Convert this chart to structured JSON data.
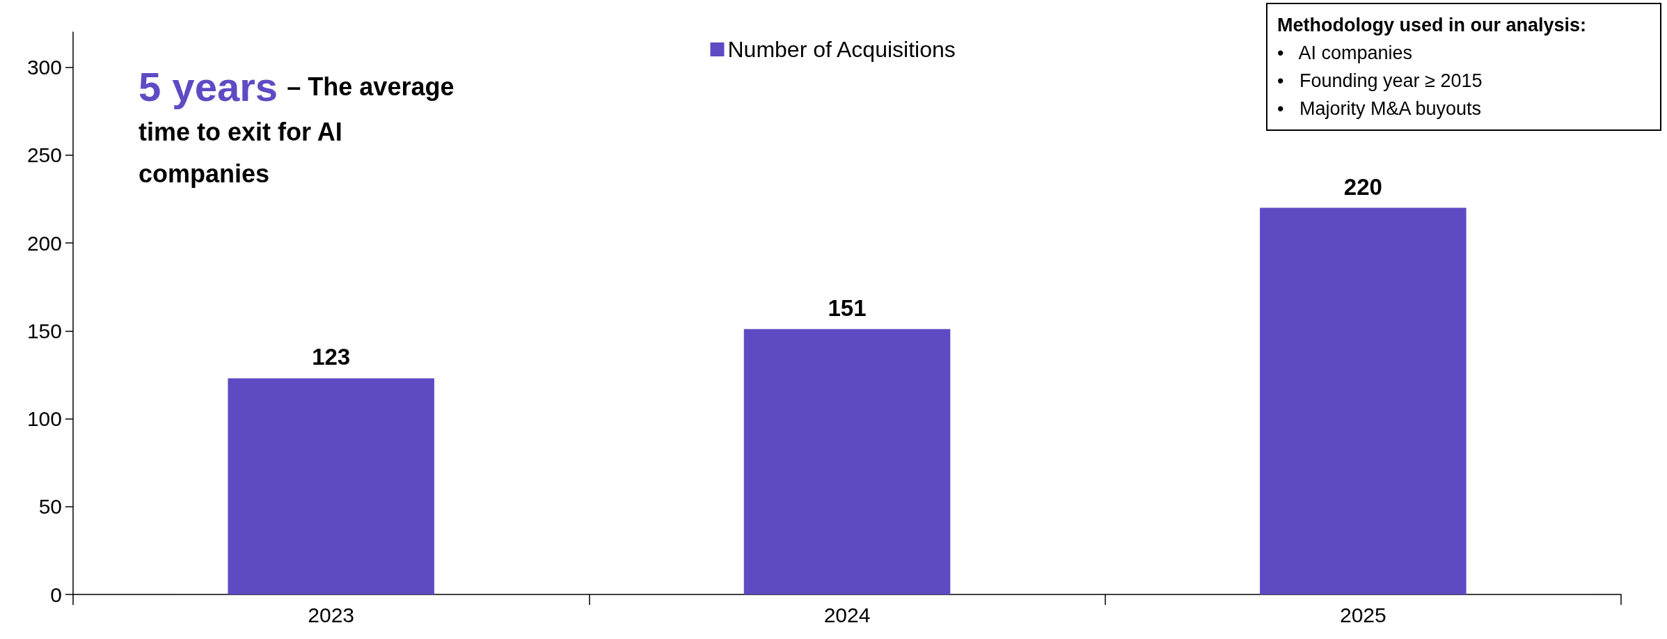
{
  "chart_data": {
    "type": "bar",
    "categories": [
      "2023",
      "2024",
      "2025"
    ],
    "series": [
      {
        "name": "Number of Acquisitions",
        "color": "#5e4bc4",
        "values": [
          123,
          151,
          220
        ]
      }
    ],
    "ylim": [
      0,
      320
    ],
    "yticks": [
      0,
      50,
      100,
      150,
      200,
      250,
      300
    ],
    "data_labels": true,
    "grid": false,
    "legend": "top",
    "annotations": [
      "5 years",
      "– The average time to exit for AI companies",
      "Methodology used in our analysis:",
      "•   AI companies",
      "•   Founding year ≥ 2015",
      "•   Majority M&A buyouts"
    ]
  }
}
